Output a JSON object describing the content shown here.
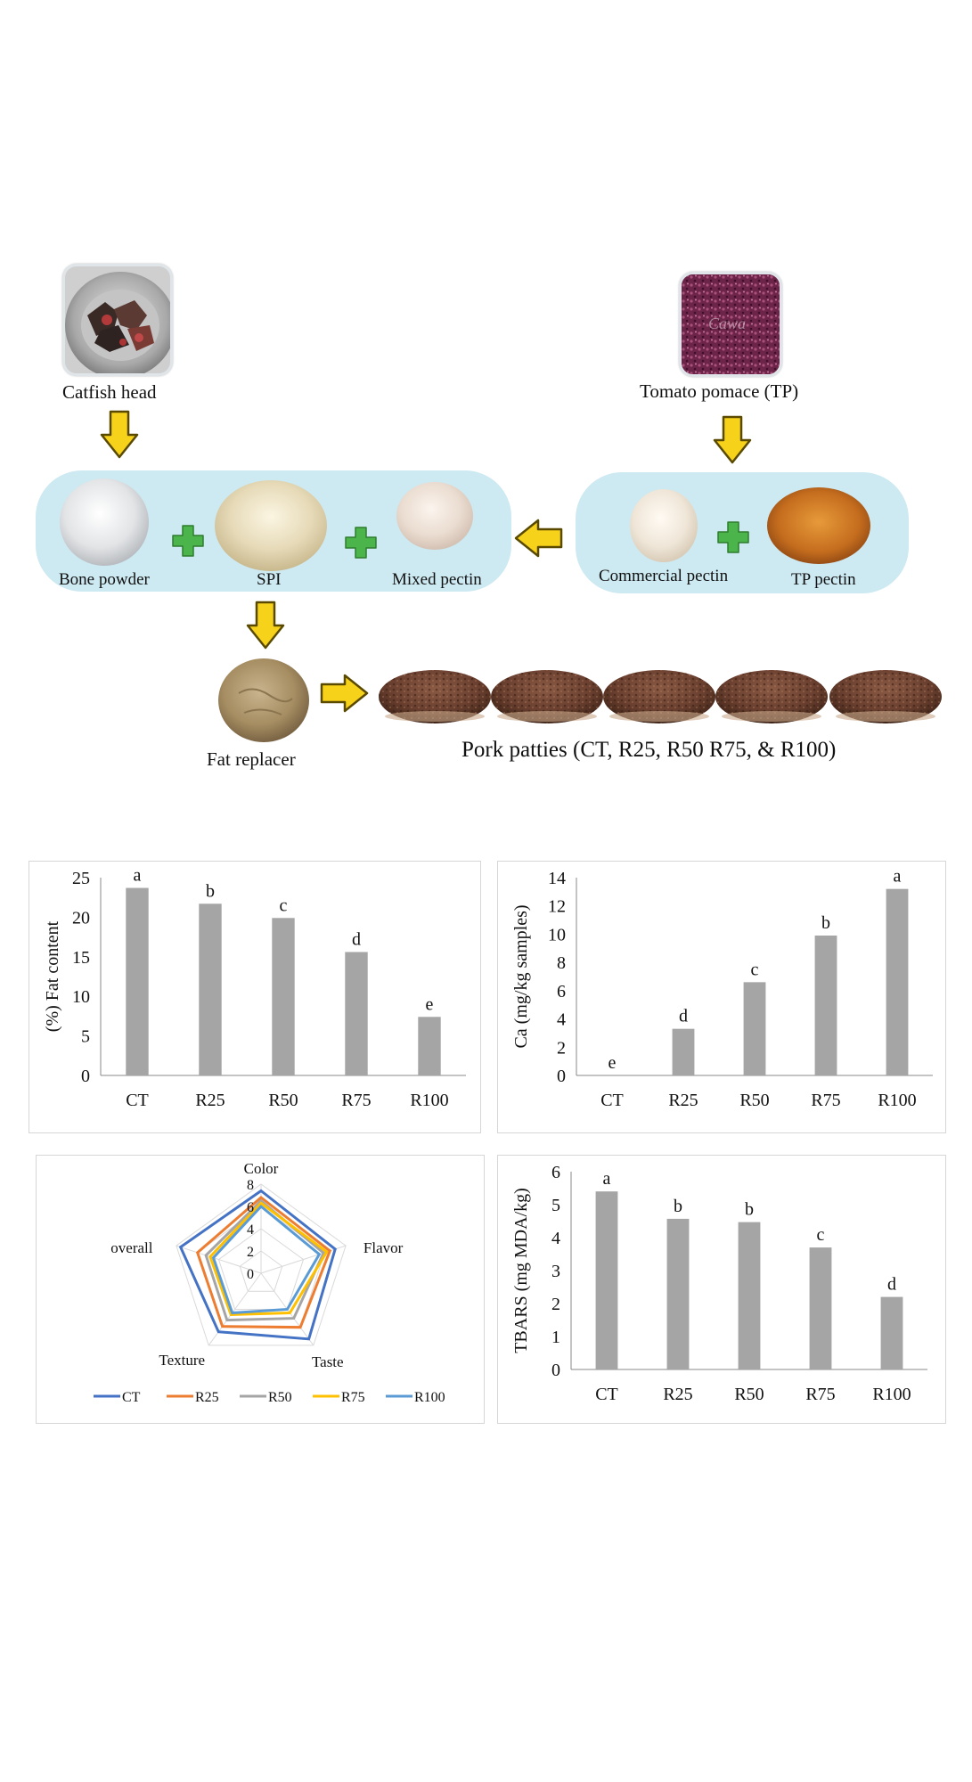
{
  "flow": {
    "catfish_label": "Catfish head",
    "tomato_label": "Tomato pomace (TP)",
    "bone_label": "Bone powder",
    "spi_label": "SPI",
    "mixed_label": "Mixed pectin",
    "commercial_label": "Commercial pectin",
    "tp_pectin_label": "TP pectin",
    "fat_replacer_label": "Fat replacer",
    "patties_label": "Pork patties (CT, R25, R50 R75, & R100)",
    "watermark": "Cawa",
    "colors": {
      "panel": "#cde9f2",
      "arrow_fill": "#f7d21a",
      "arrow_stroke": "#5a4a00",
      "plus": "#4bb54b"
    }
  },
  "chart_data": [
    {
      "type": "bar",
      "categories": [
        "CT",
        "R25",
        "R50",
        "R75",
        "R100"
      ],
      "values": [
        23.7,
        21.7,
        19.9,
        15.6,
        7.4
      ],
      "letters": [
        "a",
        "b",
        "c",
        "d",
        "e"
      ],
      "ylabel": "(%) Fat content",
      "ylim": [
        0,
        25
      ],
      "yticks": [
        0,
        5,
        10,
        15,
        20,
        25
      ],
      "color": "#a5a5a5"
    },
    {
      "type": "bar",
      "categories": [
        "CT",
        "R25",
        "R50",
        "R75",
        "R100"
      ],
      "values": [
        0,
        3.3,
        6.6,
        9.9,
        13.2
      ],
      "letters": [
        "e",
        "d",
        "c",
        "b",
        "a"
      ],
      "ylabel": "Ca (mg/kg samples)",
      "ylim": [
        0,
        14
      ],
      "yticks": [
        0,
        2,
        4,
        6,
        8,
        10,
        12,
        14
      ],
      "color": "#a5a5a5"
    },
    {
      "type": "radar",
      "axes": [
        "Color",
        "Flavor",
        "Taste",
        "Texture",
        "overall"
      ],
      "rlim": [
        0,
        8
      ],
      "rticks": [
        0,
        2,
        4,
        6,
        8
      ],
      "series": [
        {
          "name": "CT",
          "values": [
            7.4,
            7.0,
            7.3,
            6.5,
            7.6
          ],
          "color": "#4472c4"
        },
        {
          "name": "R25",
          "values": [
            6.8,
            6.5,
            6.0,
            5.9,
            6.0
          ],
          "color": "#ed7d31"
        },
        {
          "name": "R50",
          "values": [
            6.5,
            5.9,
            5.0,
            5.2,
            5.2
          ],
          "color": "#a5a5a5"
        },
        {
          "name": "R75",
          "values": [
            6.3,
            6.2,
            4.4,
            4.6,
            4.8
          ],
          "color": "#ffc000"
        },
        {
          "name": "R100",
          "values": [
            6.0,
            5.5,
            4.0,
            4.4,
            4.5
          ],
          "color": "#5b9bd5"
        }
      ],
      "legend": "bottom"
    },
    {
      "type": "bar",
      "categories": [
        "CT",
        "R25",
        "R50",
        "R75",
        "R100"
      ],
      "values": [
        5.4,
        4.57,
        4.47,
        3.7,
        2.2
      ],
      "letters": [
        "a",
        "b",
        "b",
        "c",
        "d"
      ],
      "ylabel": "TBARS (mg MDA/kg)",
      "ylim": [
        0,
        6
      ],
      "yticks": [
        0,
        1,
        2,
        3,
        4,
        5,
        6
      ],
      "color": "#a5a5a5"
    }
  ]
}
